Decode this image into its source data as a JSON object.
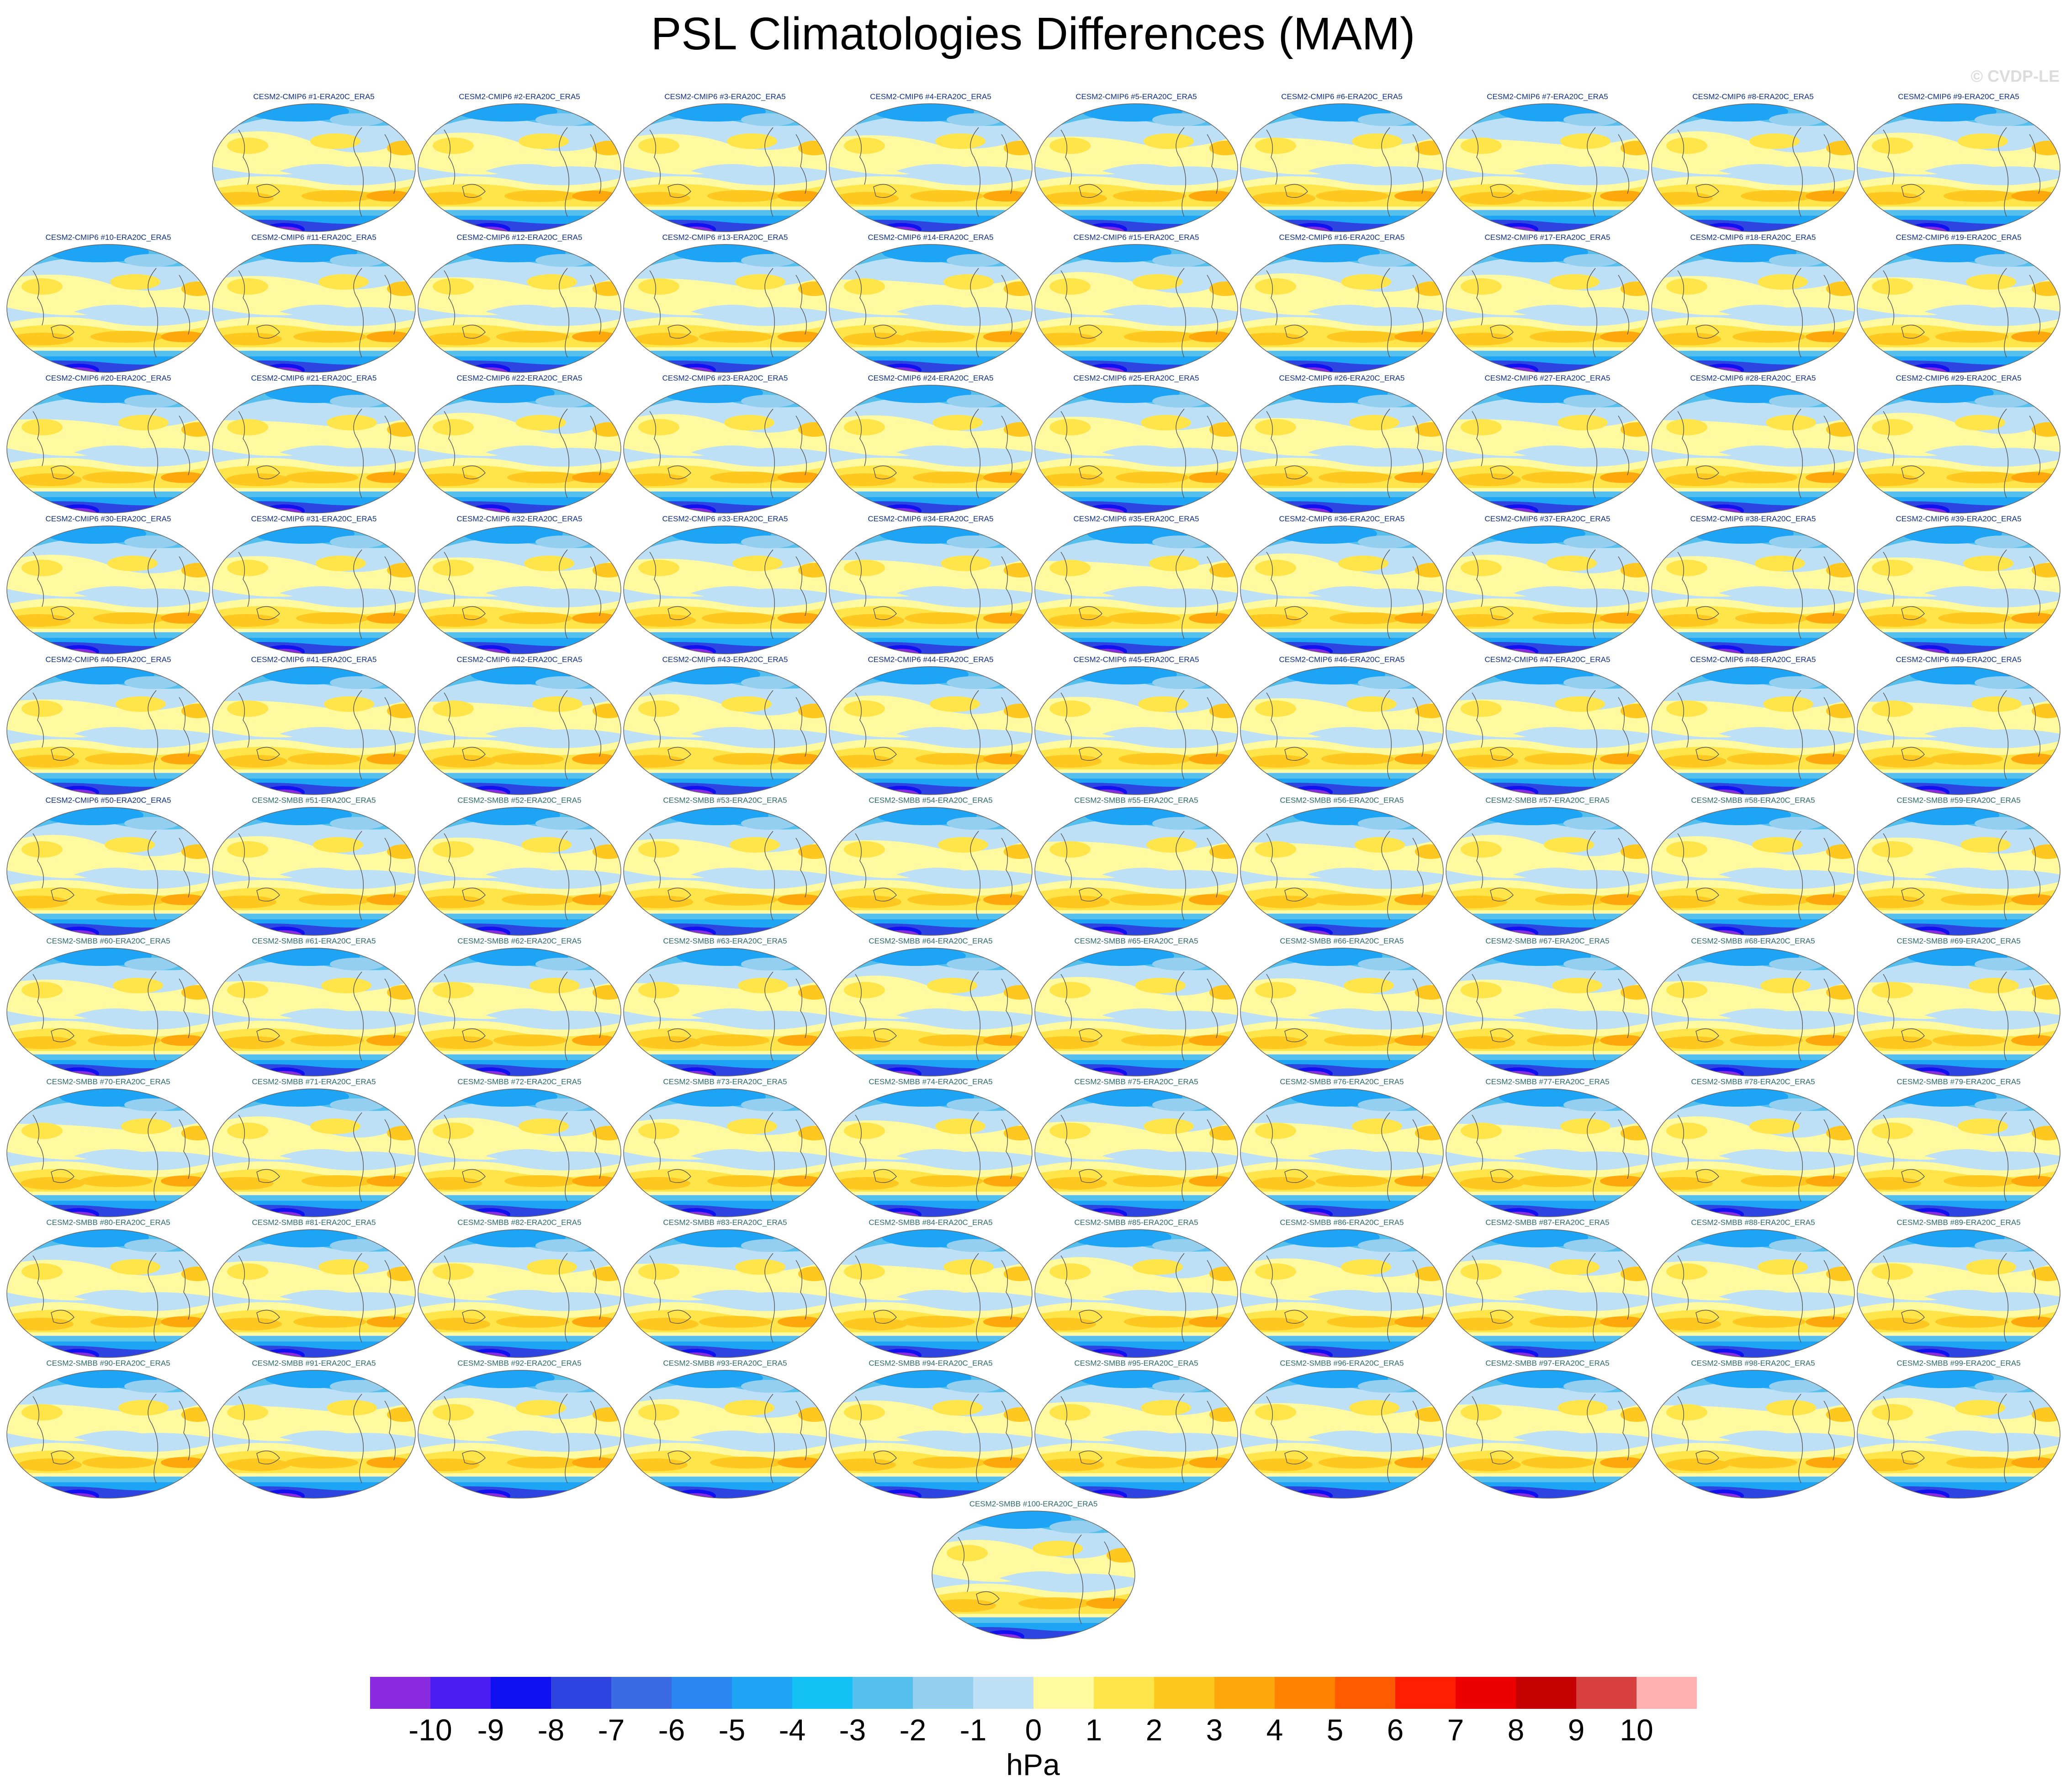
{
  "title": "PSL Climatologies Differences (MAM)",
  "watermark": "© CVDP-LE",
  "units": "hPa",
  "colorbar": {
    "tick_labels": [
      "-10",
      "-9",
      "-8",
      "-7",
      "-6",
      "-5",
      "-4",
      "-3",
      "-2",
      "-1",
      "0",
      "1",
      "2",
      "3",
      "4",
      "5",
      "6",
      "7",
      "8",
      "9",
      "10"
    ],
    "colors": [
      "#8a2be2",
      "#4a1ef2",
      "#1010f0",
      "#2d44e0",
      "#3a6ae4",
      "#2a86f2",
      "#1ea4f4",
      "#14c2f6",
      "#55c0ee",
      "#95cff0",
      "#bde0f6",
      "#fffaa0",
      "#ffe44a",
      "#ffc820",
      "#ffa80e",
      "#ff8200",
      "#ff5a00",
      "#ff1e00",
      "#ee0000",
      "#c40000",
      "#d84040",
      "#ffb0b0"
    ]
  },
  "panels": [
    {
      "label": "CESM2-CMIP6 #1-ERA20C_ERA5",
      "group": "cmip6"
    },
    {
      "label": "CESM2-CMIP6 #2-ERA20C_ERA5",
      "group": "cmip6"
    },
    {
      "label": "CESM2-CMIP6 #3-ERA20C_ERA5",
      "group": "cmip6"
    },
    {
      "label": "CESM2-CMIP6 #4-ERA20C_ERA5",
      "group": "cmip6"
    },
    {
      "label": "CESM2-CMIP6 #5-ERA20C_ERA5",
      "group": "cmip6"
    },
    {
      "label": "CESM2-CMIP6 #6-ERA20C_ERA5",
      "group": "cmip6"
    },
    {
      "label": "CESM2-CMIP6 #7-ERA20C_ERA5",
      "group": "cmip6"
    },
    {
      "label": "CESM2-CMIP6 #8-ERA20C_ERA5",
      "group": "cmip6"
    },
    {
      "label": "CESM2-CMIP6 #9-ERA20C_ERA5",
      "group": "cmip6"
    },
    {
      "label": "CESM2-CMIP6 #10-ERA20C_ERA5",
      "group": "cmip6"
    },
    {
      "label": "CESM2-CMIP6 #11-ERA20C_ERA5",
      "group": "cmip6"
    },
    {
      "label": "CESM2-CMIP6 #12-ERA20C_ERA5",
      "group": "cmip6"
    },
    {
      "label": "CESM2-CMIP6 #13-ERA20C_ERA5",
      "group": "cmip6"
    },
    {
      "label": "CESM2-CMIP6 #14-ERA20C_ERA5",
      "group": "cmip6"
    },
    {
      "label": "CESM2-CMIP6 #15-ERA20C_ERA5",
      "group": "cmip6"
    },
    {
      "label": "CESM2-CMIP6 #16-ERA20C_ERA5",
      "group": "cmip6"
    },
    {
      "label": "CESM2-CMIP6 #17-ERA20C_ERA5",
      "group": "cmip6"
    },
    {
      "label": "CESM2-CMIP6 #18-ERA20C_ERA5",
      "group": "cmip6"
    },
    {
      "label": "CESM2-CMIP6 #19-ERA20C_ERA5",
      "group": "cmip6"
    },
    {
      "label": "CESM2-CMIP6 #20-ERA20C_ERA5",
      "group": "cmip6"
    },
    {
      "label": "CESM2-CMIP6 #21-ERA20C_ERA5",
      "group": "cmip6"
    },
    {
      "label": "CESM2-CMIP6 #22-ERA20C_ERA5",
      "group": "cmip6"
    },
    {
      "label": "CESM2-CMIP6 #23-ERA20C_ERA5",
      "group": "cmip6"
    },
    {
      "label": "CESM2-CMIP6 #24-ERA20C_ERA5",
      "group": "cmip6"
    },
    {
      "label": "CESM2-CMIP6 #25-ERA20C_ERA5",
      "group": "cmip6"
    },
    {
      "label": "CESM2-CMIP6 #26-ERA20C_ERA5",
      "group": "cmip6"
    },
    {
      "label": "CESM2-CMIP6 #27-ERA20C_ERA5",
      "group": "cmip6"
    },
    {
      "label": "CESM2-CMIP6 #28-ERA20C_ERA5",
      "group": "cmip6"
    },
    {
      "label": "CESM2-CMIP6 #29-ERA20C_ERA5",
      "group": "cmip6"
    },
    {
      "label": "CESM2-CMIP6 #30-ERA20C_ERA5",
      "group": "cmip6"
    },
    {
      "label": "CESM2-CMIP6 #31-ERA20C_ERA5",
      "group": "cmip6"
    },
    {
      "label": "CESM2-CMIP6 #32-ERA20C_ERA5",
      "group": "cmip6"
    },
    {
      "label": "CESM2-CMIP6 #33-ERA20C_ERA5",
      "group": "cmip6"
    },
    {
      "label": "CESM2-CMIP6 #34-ERA20C_ERA5",
      "group": "cmip6"
    },
    {
      "label": "CESM2-CMIP6 #35-ERA20C_ERA5",
      "group": "cmip6"
    },
    {
      "label": "CESM2-CMIP6 #36-ERA20C_ERA5",
      "group": "cmip6"
    },
    {
      "label": "CESM2-CMIP6 #37-ERA20C_ERA5",
      "group": "cmip6"
    },
    {
      "label": "CESM2-CMIP6 #38-ERA20C_ERA5",
      "group": "cmip6"
    },
    {
      "label": "CESM2-CMIP6 #39-ERA20C_ERA5",
      "group": "cmip6"
    },
    {
      "label": "CESM2-CMIP6 #40-ERA20C_ERA5",
      "group": "cmip6"
    },
    {
      "label": "CESM2-CMIP6 #41-ERA20C_ERA5",
      "group": "cmip6"
    },
    {
      "label": "CESM2-CMIP6 #42-ERA20C_ERA5",
      "group": "cmip6"
    },
    {
      "label": "CESM2-CMIP6 #43-ERA20C_ERA5",
      "group": "cmip6"
    },
    {
      "label": "CESM2-CMIP6 #44-ERA20C_ERA5",
      "group": "cmip6"
    },
    {
      "label": "CESM2-CMIP6 #45-ERA20C_ERA5",
      "group": "cmip6"
    },
    {
      "label": "CESM2-CMIP6 #46-ERA20C_ERA5",
      "group": "cmip6"
    },
    {
      "label": "CESM2-CMIP6 #47-ERA20C_ERA5",
      "group": "cmip6"
    },
    {
      "label": "CESM2-CMIP6 #48-ERA20C_ERA5",
      "group": "cmip6"
    },
    {
      "label": "CESM2-CMIP6 #49-ERA20C_ERA5",
      "group": "cmip6"
    },
    {
      "label": "CESM2-CMIP6 #50-ERA20C_ERA5",
      "group": "cmip6"
    },
    {
      "label": "CESM2-SMBB #51-ERA20C_ERA5",
      "group": "smbb"
    },
    {
      "label": "CESM2-SMBB #52-ERA20C_ERA5",
      "group": "smbb"
    },
    {
      "label": "CESM2-SMBB #53-ERA20C_ERA5",
      "group": "smbb"
    },
    {
      "label": "CESM2-SMBB #54-ERA20C_ERA5",
      "group": "smbb"
    },
    {
      "label": "CESM2-SMBB #55-ERA20C_ERA5",
      "group": "smbb"
    },
    {
      "label": "CESM2-SMBB #56-ERA20C_ERA5",
      "group": "smbb"
    },
    {
      "label": "CESM2-SMBB #57-ERA20C_ERA5",
      "group": "smbb"
    },
    {
      "label": "CESM2-SMBB #58-ERA20C_ERA5",
      "group": "smbb"
    },
    {
      "label": "CESM2-SMBB #59-ERA20C_ERA5",
      "group": "smbb"
    },
    {
      "label": "CESM2-SMBB #60-ERA20C_ERA5",
      "group": "smbb"
    },
    {
      "label": "CESM2-SMBB #61-ERA20C_ERA5",
      "group": "smbb"
    },
    {
      "label": "CESM2-SMBB #62-ERA20C_ERA5",
      "group": "smbb"
    },
    {
      "label": "CESM2-SMBB #63-ERA20C_ERA5",
      "group": "smbb"
    },
    {
      "label": "CESM2-SMBB #64-ERA20C_ERA5",
      "group": "smbb"
    },
    {
      "label": "CESM2-SMBB #65-ERA20C_ERA5",
      "group": "smbb"
    },
    {
      "label": "CESM2-SMBB #66-ERA20C_ERA5",
      "group": "smbb"
    },
    {
      "label": "CESM2-SMBB #67-ERA20C_ERA5",
      "group": "smbb"
    },
    {
      "label": "CESM2-SMBB #68-ERA20C_ERA5",
      "group": "smbb"
    },
    {
      "label": "CESM2-SMBB #69-ERA20C_ERA5",
      "group": "smbb"
    },
    {
      "label": "CESM2-SMBB #70-ERA20C_ERA5",
      "group": "smbb"
    },
    {
      "label": "CESM2-SMBB #71-ERA20C_ERA5",
      "group": "smbb"
    },
    {
      "label": "CESM2-SMBB #72-ERA20C_ERA5",
      "group": "smbb"
    },
    {
      "label": "CESM2-SMBB #73-ERA20C_ERA5",
      "group": "smbb"
    },
    {
      "label": "CESM2-SMBB #74-ERA20C_ERA5",
      "group": "smbb"
    },
    {
      "label": "CESM2-SMBB #75-ERA20C_ERA5",
      "group": "smbb"
    },
    {
      "label": "CESM2-SMBB #76-ERA20C_ERA5",
      "group": "smbb"
    },
    {
      "label": "CESM2-SMBB #77-ERA20C_ERA5",
      "group": "smbb"
    },
    {
      "label": "CESM2-SMBB #78-ERA20C_ERA5",
      "group": "smbb"
    },
    {
      "label": "CESM2-SMBB #79-ERA20C_ERA5",
      "group": "smbb"
    },
    {
      "label": "CESM2-SMBB #80-ERA20C_ERA5",
      "group": "smbb"
    },
    {
      "label": "CESM2-SMBB #81-ERA20C_ERA5",
      "group": "smbb"
    },
    {
      "label": "CESM2-SMBB #82-ERA20C_ERA5",
      "group": "smbb"
    },
    {
      "label": "CESM2-SMBB #83-ERA20C_ERA5",
      "group": "smbb"
    },
    {
      "label": "CESM2-SMBB #84-ERA20C_ERA5",
      "group": "smbb"
    },
    {
      "label": "CESM2-SMBB #85-ERA20C_ERA5",
      "group": "smbb"
    },
    {
      "label": "CESM2-SMBB #86-ERA20C_ERA5",
      "group": "smbb"
    },
    {
      "label": "CESM2-SMBB #87-ERA20C_ERA5",
      "group": "smbb"
    },
    {
      "label": "CESM2-SMBB #88-ERA20C_ERA5",
      "group": "smbb"
    },
    {
      "label": "CESM2-SMBB #89-ERA20C_ERA5",
      "group": "smbb"
    },
    {
      "label": "CESM2-SMBB #90-ERA20C_ERA5",
      "group": "smbb"
    },
    {
      "label": "CESM2-SMBB #91-ERA20C_ERA5",
      "group": "smbb"
    },
    {
      "label": "CESM2-SMBB #92-ERA20C_ERA5",
      "group": "smbb"
    },
    {
      "label": "CESM2-SMBB #93-ERA20C_ERA5",
      "group": "smbb"
    },
    {
      "label": "CESM2-SMBB #94-ERA20C_ERA5",
      "group": "smbb"
    },
    {
      "label": "CESM2-SMBB #95-ERA20C_ERA5",
      "group": "smbb"
    },
    {
      "label": "CESM2-SMBB #96-ERA20C_ERA5",
      "group": "smbb"
    },
    {
      "label": "CESM2-SMBB #97-ERA20C_ERA5",
      "group": "smbb"
    },
    {
      "label": "CESM2-SMBB #98-ERA20C_ERA5",
      "group": "smbb"
    },
    {
      "label": "CESM2-SMBB #99-ERA20C_ERA5",
      "group": "smbb"
    },
    {
      "label": "CESM2-SMBB #100-ERA20C_ERA5",
      "group": "smbb"
    }
  ]
}
